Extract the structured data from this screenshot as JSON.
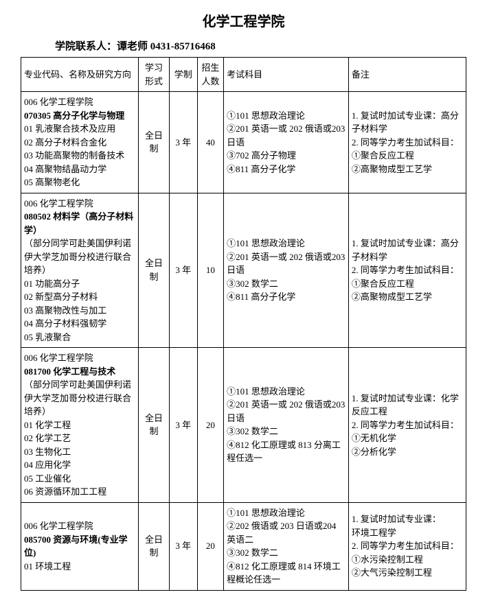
{
  "title": "化学工程学院",
  "contact": "学院联系人：谭老师 0431-85716468",
  "headers": {
    "major": "专业代码、名称及研究方向",
    "form": "学习形式",
    "duration": "学制",
    "num": "招生人数",
    "exam": "考试科目",
    "note": "备注"
  },
  "rows": [
    {
      "major": [
        {
          "t": "006 化学工程学院",
          "b": false
        },
        {
          "t": "070305 高分子化学与物理",
          "b": true
        },
        {
          "t": "01 乳液聚合技术及应用",
          "b": false
        },
        {
          "t": "02 高分子材料合金化",
          "b": false
        },
        {
          "t": "03 功能高聚物的制备技术",
          "b": false
        },
        {
          "t": "04 高聚物结晶动力学",
          "b": false
        },
        {
          "t": "05 高聚物老化",
          "b": false
        }
      ],
      "form": "全日制",
      "duration": "3 年",
      "num": "40",
      "exam": [
        "①101 思想政治理论",
        "②201 英语一或 202 俄语或203 日语",
        "③702 高分子物理",
        "④811 高分子化学"
      ],
      "note": [
        "1. 复试时加试专业课：高分子材料学",
        "2. 同等学力考生加试科目：",
        "①聚合反应工程",
        "②高聚物成型工艺学"
      ]
    },
    {
      "major": [
        {
          "t": "006 化学工程学院",
          "b": false
        },
        {
          "t": "080502 材料学（高分子材料学）",
          "b": true
        },
        {
          "t": "（部分同学可赴美国伊利诺伊大学芝加哥分校进行联合培养）",
          "b": false
        },
        {
          "t": "01 功能高分子",
          "b": false
        },
        {
          "t": "02 新型高分子材料",
          "b": false
        },
        {
          "t": "03 高聚物改性与加工",
          "b": false
        },
        {
          "t": "04 高分子材料强韧学",
          "b": false
        },
        {
          "t": "05 乳液聚合",
          "b": false
        }
      ],
      "form": "全日制",
      "duration": "3 年",
      "num": "10",
      "exam": [
        "①101 思想政治理论",
        "②201 英语一或 202 俄语或203 日语",
        "③302 数学二",
        "④811 高分子化学"
      ],
      "note": [
        "1. 复试时加试专业课：高分子材料学",
        "2. 同等学力考生加试科目：",
        "①聚合反应工程",
        "②高聚物成型工艺学"
      ]
    },
    {
      "major": [
        {
          "t": "006 化学工程学院",
          "b": false
        },
        {
          "t": "081700 化学工程与技术",
          "b": true
        },
        {
          "t": "（部分同学可赴美国伊利诺伊大学芝加哥分校进行联合培养）",
          "b": false
        },
        {
          "t": "01 化学工程",
          "b": false
        },
        {
          "t": "02 化学工艺",
          "b": false
        },
        {
          "t": "03 生物化工",
          "b": false
        },
        {
          "t": "04 应用化学",
          "b": false
        },
        {
          "t": "05 工业催化",
          "b": false
        },
        {
          "t": "06 资源循环加工工程",
          "b": false
        }
      ],
      "form": "全日制",
      "duration": "3 年",
      "num": "20",
      "exam": [
        "①101 思想政治理论",
        "②201 英语一或 202 俄语或203 日语",
        "③302 数学二",
        "④812 化工原理或 813 分离工程任选一"
      ],
      "note": [
        "1. 复试时加试专业课：化学反应工程",
        "2. 同等学力考生加试科目：",
        "①无机化学",
        "②分析化学"
      ]
    },
    {
      "major": [
        {
          "t": "006 化学工程学院",
          "b": false
        },
        {
          "t": "085700 资源与环境(专业学位)",
          "b": true
        },
        {
          "t": "01 环境工程",
          "b": false
        }
      ],
      "form": "全日制",
      "duration": "3 年",
      "num": "20",
      "exam": [
        "①101 思想政治理论",
        "②202 俄语或 203 日语或204 英语二",
        "③302 数学二",
        "④812 化工原理或 814 环境工程概论任选一"
      ],
      "note": [
        "1. 复试时加试专业课：",
        "环境工程学",
        "2. 同等学力考生加试科目：",
        "①水污染控制工程",
        "②大气污染控制工程"
      ]
    }
  ]
}
